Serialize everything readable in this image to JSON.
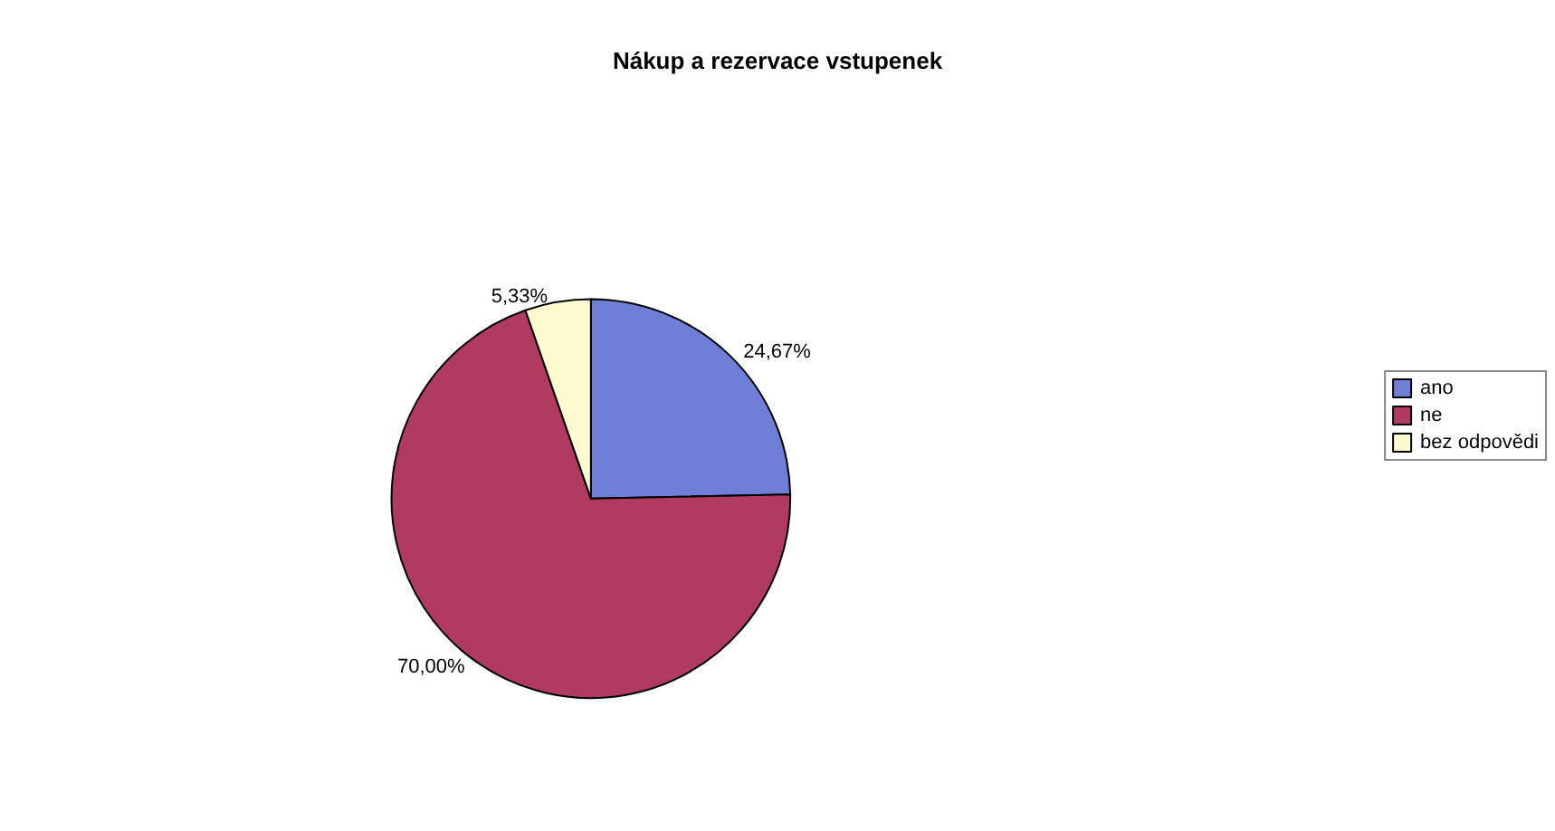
{
  "chart_data": {
    "type": "pie",
    "title": "Nákup a rezervace vstupenek",
    "categories": [
      "ano",
      "ne",
      "bez odpovědi"
    ],
    "values": [
      24.67,
      70.0,
      5.33
    ],
    "value_labels": [
      "24,67%",
      "70,00%",
      "5,33%"
    ],
    "colors": [
      "#6f7fd6",
      "#b03a60",
      "#fffbd0"
    ],
    "legend": "right"
  }
}
